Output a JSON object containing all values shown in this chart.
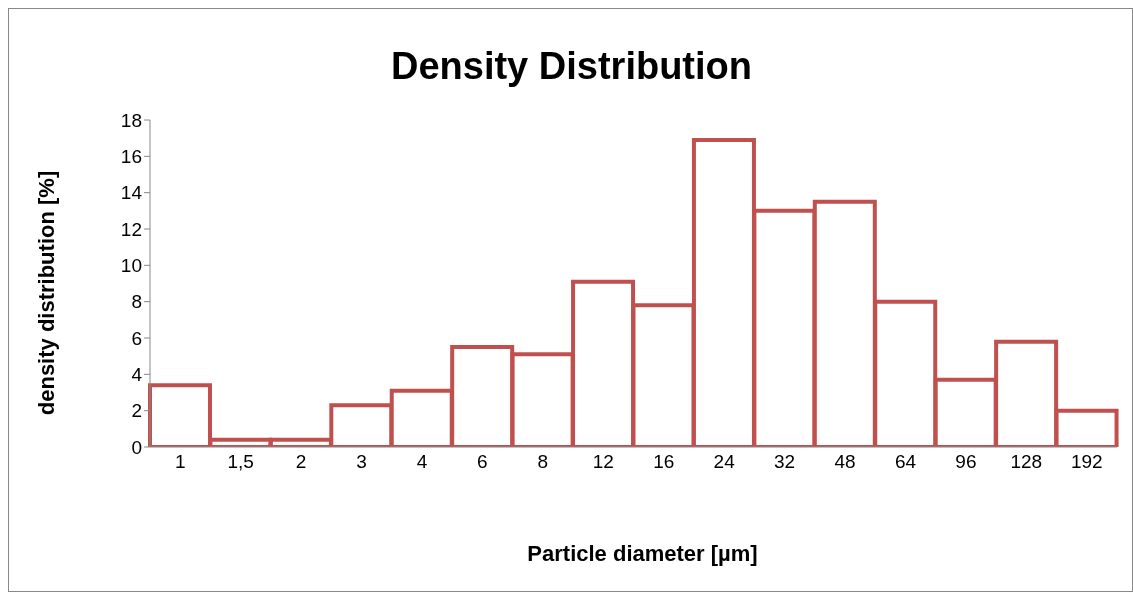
{
  "chart_data": {
    "type": "bar",
    "title": "Density Distribution",
    "xlabel": "Particle  diameter [µm]",
    "ylabel": "density distribution [%]",
    "categories": [
      "1",
      "1,5",
      "2",
      "3",
      "4",
      "6",
      "8",
      "12",
      "16",
      "24",
      "32",
      "48",
      "64",
      "96",
      "128",
      "192"
    ],
    "values": [
      3.4,
      0.4,
      0.4,
      2.3,
      3.1,
      5.5,
      5.1,
      9.1,
      7.8,
      16.9,
      13.0,
      13.5,
      8.0,
      3.7,
      5.8,
      2.0
    ],
    "color": "#c0504d",
    "ylim": [
      0,
      18
    ],
    "yticks": [
      0,
      2,
      4,
      6,
      8,
      10,
      12,
      14,
      16,
      18
    ],
    "grid": false,
    "legend": false
  }
}
